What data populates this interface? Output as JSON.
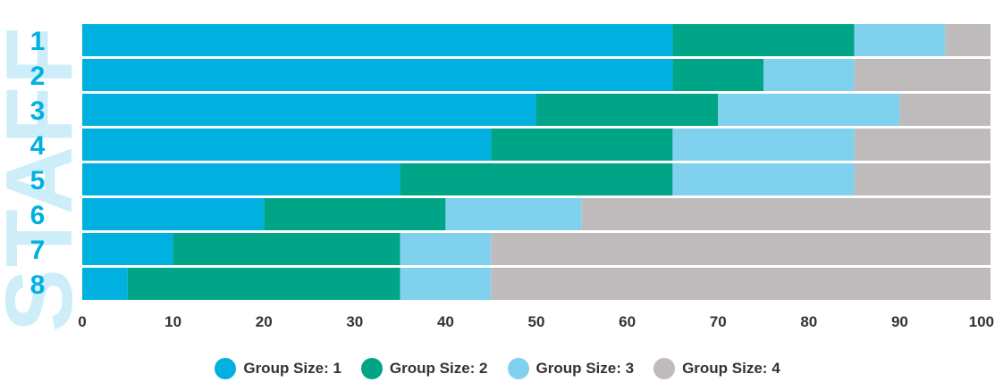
{
  "watermark": "STAFF",
  "chart_data": {
    "type": "bar",
    "orientation": "horizontal",
    "stacked": true,
    "categories": [
      "1",
      "2",
      "3",
      "4",
      "5",
      "6",
      "7",
      "8"
    ],
    "series": [
      {
        "name": "Group Size: 1",
        "color": "#00b0e0",
        "values": [
          65,
          65,
          50,
          45,
          35,
          20,
          10,
          5
        ]
      },
      {
        "name": "Group Size: 2",
        "color": "#00a486",
        "values": [
          20,
          10,
          20,
          20,
          30,
          20,
          25,
          30
        ]
      },
      {
        "name": "Group Size: 3",
        "color": "#80d1ee",
        "values": [
          10,
          10,
          20,
          20,
          20,
          15,
          10,
          10
        ]
      },
      {
        "name": "Group Size: 4",
        "color": "#bfbbbd",
        "values": [
          5,
          15,
          10,
          15,
          15,
          45,
          55,
          55
        ]
      }
    ],
    "xlim": [
      0,
      100
    ],
    "xticks": [
      "0",
      "10",
      "20",
      "30",
      "40",
      "50",
      "60",
      "70",
      "80",
      "90",
      "100"
    ],
    "grid": false,
    "legend_position": "bottom"
  }
}
